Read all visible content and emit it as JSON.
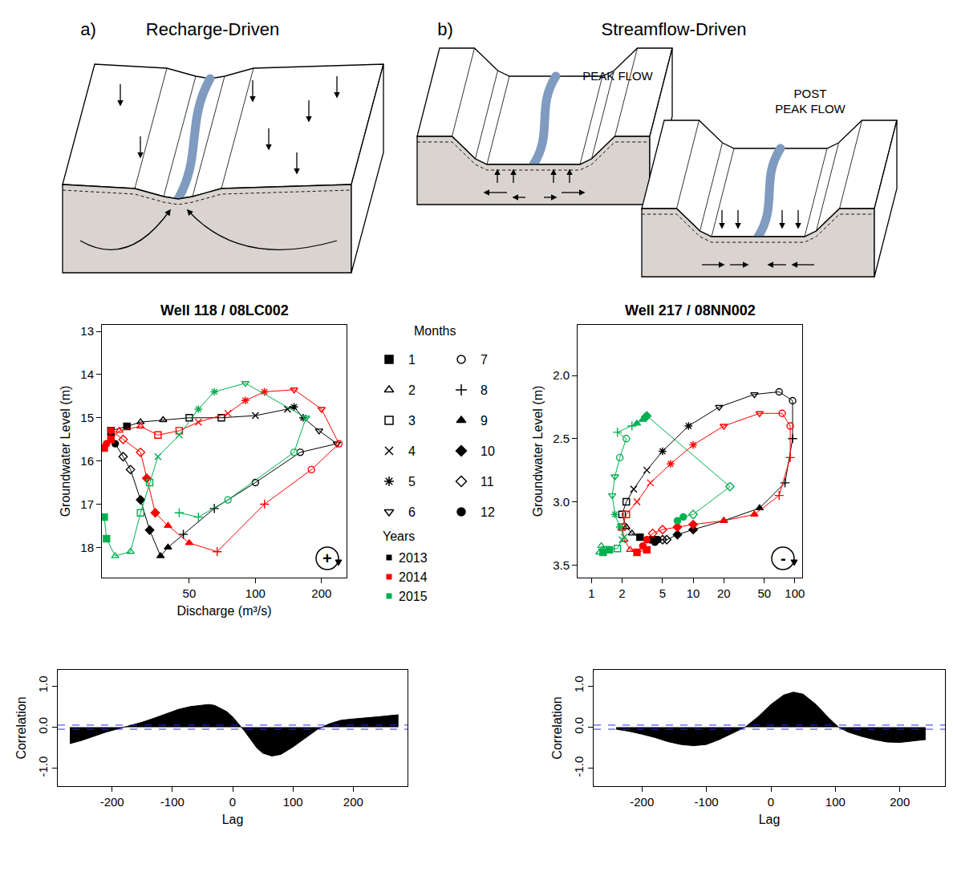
{
  "diagram": {
    "panels": [
      {
        "letter": "a)",
        "title": "Recharge-Driven"
      },
      {
        "letter": "b)",
        "title": "Streamflow-Driven",
        "labels": [
          "PEAK FLOW",
          "POST PEAK FLOW"
        ]
      }
    ]
  },
  "month_key": {
    "title": "Months",
    "months": [
      1,
      2,
      3,
      4,
      5,
      6,
      7,
      8,
      9,
      10,
      11,
      12
    ],
    "markers": [
      "square",
      "triangle-up-open",
      "square-open",
      "x-thin-open",
      "asterisk-open",
      "triangle-down-open",
      "circle-open",
      "cross-thin-open",
      "triangle-up",
      "diamond",
      "diamond-open",
      "circle"
    ]
  },
  "year_key": {
    "title": "Years"
  },
  "chart_data": [
    {
      "type": "scatter",
      "title": "Well 118 / 08LC002",
      "x_label": "Discharge (m³/s)",
      "y_label": "Groundwater Level (m)",
      "log": "x",
      "xlim": [
        20,
        260
      ],
      "ylim": [
        18.7,
        12.85
      ],
      "xticks": [
        50,
        100,
        200
      ],
      "yticks": [
        13,
        14,
        15,
        16,
        17,
        18
      ],
      "annotations": [
        "+"
      ],
      "series": [
        {
          "name": "2013",
          "color": "#000000",
          "x": [
            22,
            26,
            30,
            38,
            50,
            70,
            100,
            140,
            150,
            165,
            195,
            235,
            160,
            100,
            65,
            47,
            40,
            37,
            33,
            30,
            27,
            25,
            23,
            22
          ],
          "values": [
            15.3,
            15.2,
            15.1,
            15.05,
            15.0,
            15.0,
            14.95,
            14.8,
            14.75,
            15.0,
            15.3,
            15.6,
            15.8,
            16.5,
            17.1,
            17.7,
            18.0,
            18.2,
            17.6,
            16.9,
            16.2,
            15.9,
            15.6,
            15.4
          ],
          "months": [
            1,
            1,
            2,
            2,
            3,
            3,
            4,
            4,
            5,
            5,
            6,
            6,
            7,
            7,
            8,
            8,
            9,
            9,
            10,
            10,
            11,
            11,
            12,
            12
          ]
        },
        {
          "name": "2014",
          "color": "#ff0000",
          "x": [
            22,
            20.5,
            24,
            30,
            36,
            45,
            55,
            75,
            90,
            110,
            150,
            200,
            240,
            180,
            110,
            67,
            50,
            40,
            35,
            32,
            30,
            25,
            22,
            21
          ],
          "values": [
            15.5,
            15.7,
            15.3,
            15.2,
            15.4,
            15.3,
            15.1,
            14.9,
            14.6,
            14.4,
            14.35,
            14.8,
            15.6,
            16.2,
            17.0,
            18.1,
            17.9,
            17.5,
            17.2,
            16.4,
            15.8,
            15.5,
            15.3,
            15.6
          ],
          "months": [
            1,
            1,
            2,
            2,
            3,
            3,
            4,
            4,
            5,
            5,
            6,
            6,
            7,
            7,
            8,
            8,
            9,
            9,
            10,
            10,
            11,
            11,
            12,
            12
          ]
        },
        {
          "name": "2015",
          "color": "#00b050",
          "x": [
            20.5,
            21,
            23,
            27,
            30,
            33,
            36,
            45,
            55,
            65,
            90,
            170,
            150,
            75,
            55,
            45
          ],
          "values": [
            17.3,
            17.8,
            18.2,
            18.1,
            17.2,
            16.5,
            15.9,
            15.4,
            14.8,
            14.4,
            14.2,
            15.0,
            15.8,
            16.9,
            17.3,
            17.2
          ],
          "months": [
            1,
            1,
            2,
            2,
            3,
            3,
            4,
            4,
            5,
            5,
            6,
            6,
            7,
            7,
            8,
            8
          ]
        }
      ]
    },
    {
      "type": "scatter",
      "title": "Well 217 / 08NN002",
      "y_label": "Groundwater Level (m)",
      "log": "x",
      "xlim": [
        0.73,
        118
      ],
      "ylim": [
        3.6,
        1.6
      ],
      "xticks": [
        1,
        2,
        5,
        10,
        20,
        50,
        100
      ],
      "yticks": [
        {
          "value": 2,
          "label": "2.0"
        },
        {
          "value": 2.5,
          "label": "2.5"
        },
        {
          "value": 3,
          "label": "3.0"
        },
        {
          "value": 3.5,
          "label": "3.5"
        }
      ],
      "annotations": [
        "-"
      ],
      "series": [
        {
          "name": "2013",
          "color": "#000000",
          "x": [
            4,
            3,
            2.5,
            2.2,
            2.0,
            2.2,
            2.6,
            3.5,
            5,
            9,
            18,
            40,
            70,
            95,
            95,
            80,
            45,
            20,
            10,
            7,
            5.5,
            5,
            4.5,
            4.2
          ],
          "values": [
            3.3,
            3.28,
            3.25,
            3.2,
            3.1,
            3.0,
            2.9,
            2.75,
            2.6,
            2.4,
            2.25,
            2.15,
            2.13,
            2.2,
            2.5,
            2.85,
            3.05,
            3.15,
            3.22,
            3.26,
            3.3,
            3.3,
            3.3,
            3.32
          ],
          "months": [
            1,
            1,
            2,
            2,
            3,
            3,
            4,
            4,
            5,
            5,
            6,
            6,
            7,
            7,
            8,
            8,
            9,
            9,
            10,
            10,
            11,
            11,
            12,
            12
          ]
        },
        {
          "name": "2014",
          "color": "#ff0000",
          "x": [
            3.5,
            2.8,
            2.4,
            2.1,
            2.0,
            2.2,
            2.8,
            3.8,
            6,
            10,
            20,
            45,
            75,
            90,
            90,
            70,
            40,
            20,
            10,
            7,
            5,
            4,
            3.5,
            3.2
          ],
          "values": [
            3.38,
            3.4,
            3.38,
            3.3,
            3.2,
            3.1,
            3.0,
            2.85,
            2.7,
            2.55,
            2.4,
            2.3,
            2.3,
            2.4,
            2.65,
            2.95,
            3.1,
            3.15,
            3.18,
            3.2,
            3.22,
            3.25,
            3.3,
            3.35
          ],
          "months": [
            1,
            1,
            2,
            2,
            3,
            3,
            4,
            4,
            5,
            5,
            6,
            6,
            7,
            7,
            8,
            8,
            9,
            9,
            10,
            10,
            11,
            11,
            12,
            12
          ]
        },
        {
          "name": "2015",
          "color": "#00b050",
          "x": [
            1.5,
            1.3,
            1.2,
            1.25,
            1.4,
            1.8,
            2.0,
            2.1,
            1.9,
            1.7,
            1.6,
            1.7,
            1.9,
            2.2,
            1.8,
            2.5,
            2.8,
            3.2,
            3.4,
            3.5,
            23,
            10,
            8,
            7
          ],
          "values": [
            3.38,
            3.4,
            3.4,
            3.35,
            3.38,
            3.37,
            3.3,
            3.28,
            3.2,
            3.1,
            2.95,
            2.8,
            2.65,
            2.5,
            2.45,
            2.4,
            2.38,
            2.35,
            2.33,
            2.32,
            2.88,
            3.1,
            3.12,
            3.15
          ],
          "months": [
            1,
            1,
            2,
            2,
            3,
            3,
            4,
            4,
            5,
            5,
            6,
            6,
            7,
            7,
            8,
            8,
            9,
            9,
            10,
            10,
            11,
            11,
            12,
            12
          ]
        }
      ]
    },
    {
      "type": "area",
      "x_label": "Lag",
      "y_label": "Correlation",
      "xlim": [
        -290,
        290
      ],
      "ylim": [
        -1.43,
        1.39
      ],
      "xticks": [
        -200,
        -100,
        0,
        100,
        200
      ],
      "yticks": [
        {
          "value": -1,
          "label": "-1.0"
        },
        {
          "value": 0,
          "label": "0.0"
        },
        {
          "value": 1,
          "label": "1.0"
        }
      ],
      "series": [
        {
          "type": "area",
          "color": "#000000",
          "x": [
            -270,
            -250,
            -230,
            -210,
            -190,
            -170,
            -150,
            -130,
            -110,
            -90,
            -70,
            -50,
            -40,
            -30,
            -10,
            0,
            10,
            20,
            30,
            40,
            50,
            65,
            80,
            100,
            120,
            140,
            160,
            180,
            200,
            220,
            240,
            260,
            275
          ],
          "values": [
            -0.4,
            -0.32,
            -0.22,
            -0.12,
            -0.04,
            0.04,
            0.12,
            0.22,
            0.33,
            0.43,
            0.5,
            0.54,
            0.55,
            0.53,
            0.38,
            0.25,
            0.08,
            -0.1,
            -0.3,
            -0.5,
            -0.63,
            -0.7,
            -0.66,
            -0.48,
            -0.27,
            -0.06,
            0.08,
            0.17,
            0.2,
            0.22,
            0.25,
            0.28,
            0.3
          ]
        },
        {
          "type": "hline",
          "color": "#2b2bff",
          "line_style": "dash",
          "values": [
            -0.05,
            0.05
          ]
        }
      ]
    },
    {
      "type": "area",
      "x_label": "Lag",
      "y_label": "Correlation",
      "xlim": [
        -275,
        270
      ],
      "ylim": [
        -1.43,
        1.39
      ],
      "xticks": [
        -200,
        -100,
        0,
        100,
        200
      ],
      "yticks": [
        {
          "value": -1,
          "label": "-1.0"
        },
        {
          "value": 0,
          "label": "0.0"
        },
        {
          "value": 1,
          "label": "1.0"
        }
      ],
      "series": [
        {
          "type": "area",
          "color": "#000000",
          "x": [
            -240,
            -220,
            -200,
            -180,
            -160,
            -140,
            -120,
            -100,
            -80,
            -60,
            -40,
            -20,
            0,
            20,
            35,
            50,
            70,
            90,
            105,
            120,
            140,
            160,
            180,
            200,
            220,
            240
          ],
          "values": [
            -0.05,
            -0.1,
            -0.17,
            -0.25,
            -0.35,
            -0.42,
            -0.45,
            -0.42,
            -0.3,
            -0.15,
            0.0,
            0.25,
            0.55,
            0.78,
            0.85,
            0.8,
            0.55,
            0.22,
            0.0,
            -0.12,
            -0.22,
            -0.3,
            -0.36,
            -0.37,
            -0.34,
            -0.3
          ]
        },
        {
          "type": "hline",
          "color": "#2b2bff",
          "line_style": "dash",
          "values": [
            -0.05,
            0.05
          ]
        }
      ]
    }
  ]
}
